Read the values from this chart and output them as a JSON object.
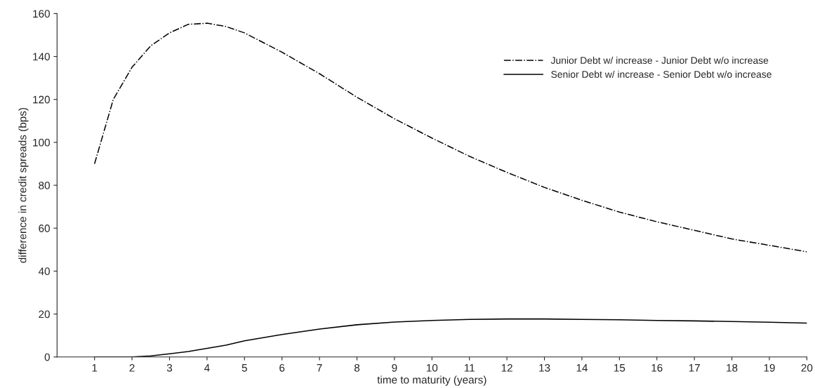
{
  "chart_data": {
    "type": "line",
    "xlabel": "time to maturity (years)",
    "ylabel": "difference in credit spreads (bps)",
    "x": [
      1,
      1.5,
      2,
      2.5,
      3,
      3.5,
      4,
      4.5,
      5,
      6,
      7,
      8,
      9,
      10,
      11,
      12,
      13,
      14,
      15,
      16,
      17,
      18,
      19,
      20
    ],
    "series": [
      {
        "name": "Junior Debt w/ increase - Junior Debt w/o increase",
        "color": "#000000",
        "line_style": "dashdot",
        "values": [
          90,
          120,
          135,
          145,
          151,
          155,
          155.5,
          154,
          151,
          142,
          132,
          121,
          111,
          102,
          93.5,
          86,
          79,
          73,
          67.5,
          63,
          59,
          55,
          52,
          49
        ]
      },
      {
        "name": "Senior Debt w/ increase - Senior Debt w/o increase",
        "color": "#000000",
        "line_style": "solid",
        "values": [
          0,
          0,
          0,
          0.5,
          1.5,
          2.5,
          4,
          5.5,
          7.5,
          10.5,
          13,
          15,
          16.3,
          17,
          17.5,
          17.7,
          17.7,
          17.5,
          17.3,
          17,
          16.8,
          16.5,
          16.2,
          15.8
        ]
      }
    ],
    "xlim": [
      0,
      20
    ],
    "xticks": [
      1,
      2,
      3,
      4,
      5,
      6,
      7,
      8,
      9,
      10,
      11,
      12,
      13,
      14,
      15,
      16,
      17,
      18,
      19,
      20
    ],
    "ylim": [
      0,
      160
    ],
    "yticks": [
      0,
      20,
      40,
      60,
      80,
      100,
      120,
      140,
      160
    ],
    "legend": "top right",
    "grid": false
  }
}
